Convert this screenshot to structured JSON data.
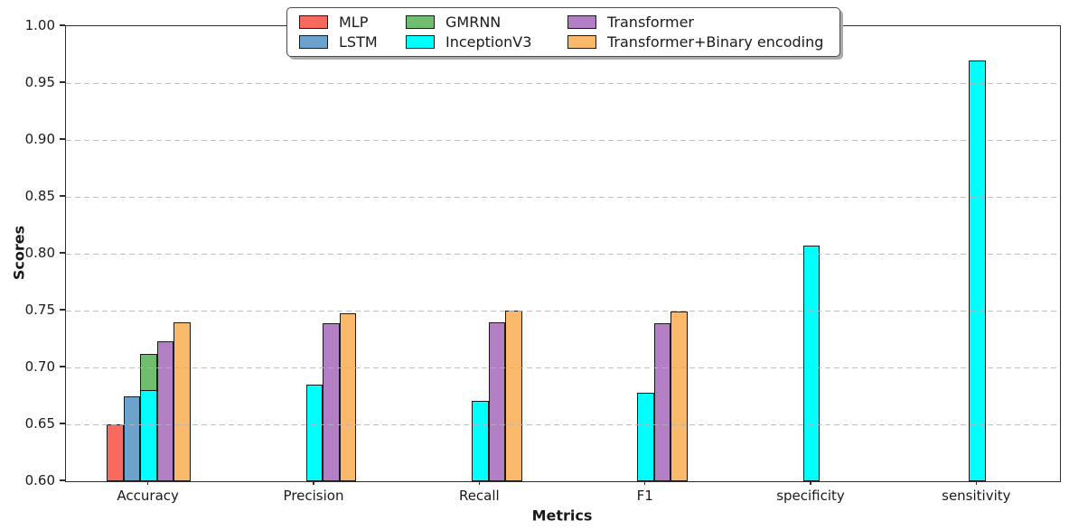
{
  "chart_data": {
    "type": "bar",
    "title": "",
    "xlabel": "Metrics",
    "ylabel": "Scores",
    "ylim": [
      0.6,
      1.0
    ],
    "ytick_step": 0.05,
    "yticks": [
      "1.00",
      "0.95",
      "0.90",
      "0.85",
      "0.80",
      "0.75",
      "0.70",
      "0.65",
      "0.60"
    ],
    "categories": [
      "Accuracy",
      "Precision",
      "Recall",
      "F1",
      "specificity",
      "sensitivity"
    ],
    "grid": "horizontal-dashed",
    "legend": {
      "position": "top-center",
      "rows": 2,
      "columns": 3,
      "order": "column-major"
    },
    "series": [
      {
        "name": "MLP",
        "color": "#f9695e",
        "slot": 0,
        "values": [
          0.65,
          null,
          null,
          null,
          null,
          null
        ]
      },
      {
        "name": "LSTM",
        "color": "#6ba3ce",
        "slot": 1,
        "values": [
          0.675,
          null,
          null,
          null,
          null,
          null
        ]
      },
      {
        "name": "GMRNN",
        "color": "#70bd70",
        "slot": 2,
        "values": [
          0.712,
          null,
          null,
          null,
          null,
          null
        ]
      },
      {
        "name": "InceptionV3",
        "color": "#00ffff",
        "slot": 2,
        "values": [
          0.68,
          0.685,
          0.671,
          0.678,
          0.807,
          0.97
        ]
      },
      {
        "name": "Transformer",
        "color": "#b27fc4",
        "slot": 3,
        "values": [
          0.723,
          0.739,
          0.74,
          0.739,
          null,
          null
        ]
      },
      {
        "name": "Transformer+Binary encoding",
        "color": "#fab86a",
        "slot": 4,
        "values": [
          0.74,
          0.748,
          0.75,
          0.749,
          null,
          null
        ]
      }
    ],
    "colors": {
      "spine": "#2e2e2e",
      "grid": "#b4b4b4",
      "bar_edge": "#1a1a1a",
      "background": "#ffffff"
    }
  }
}
